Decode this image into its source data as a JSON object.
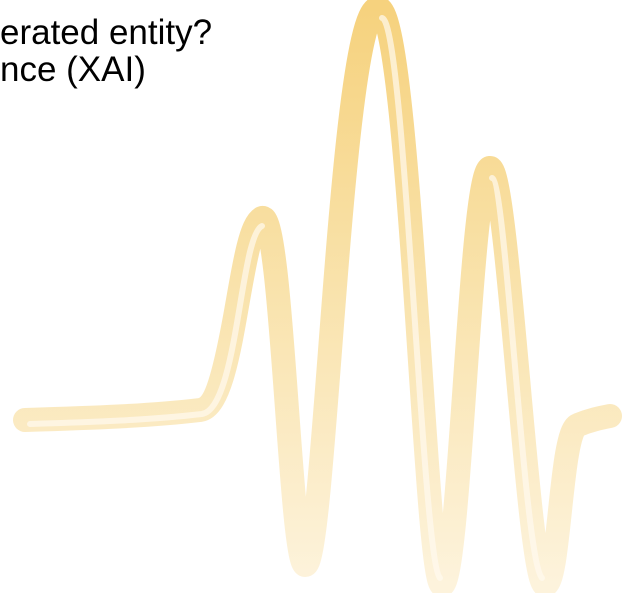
{
  "lines": [
    "erated entity?",
    "nce (XAI)"
  ]
}
